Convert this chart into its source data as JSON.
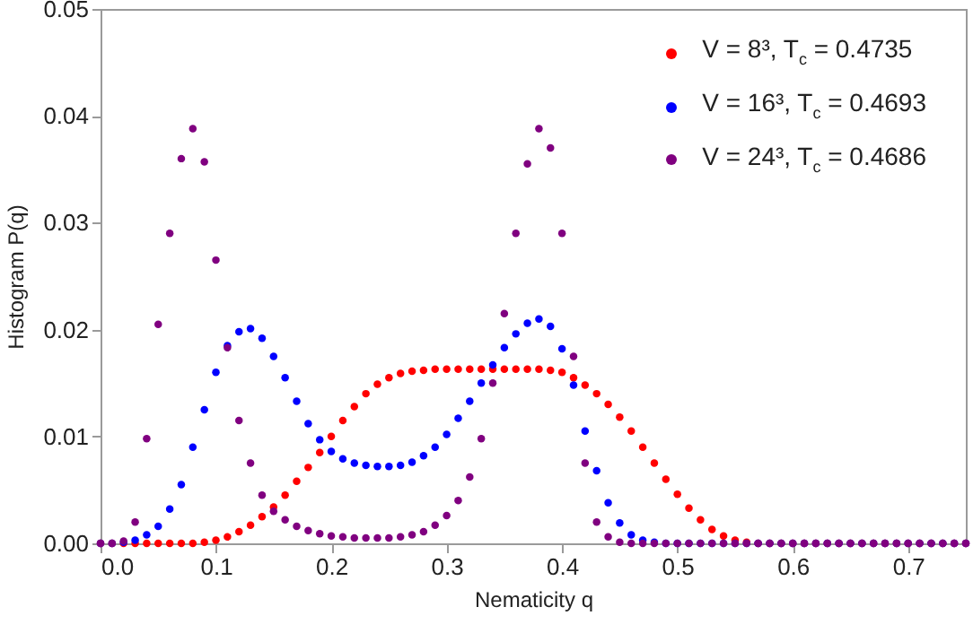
{
  "chart_data": {
    "type": "scatter",
    "xlabel": "Nematicity q",
    "ylabel": "Histogram P(q)",
    "xlim": [
      0,
      0.75
    ],
    "ylim": [
      0,
      0.05
    ],
    "xticks": [
      {
        "value": 0,
        "label": "0.0"
      },
      {
        "value": 0.1,
        "label": "0.1"
      },
      {
        "value": 0.2,
        "label": "0.2"
      },
      {
        "value": 0.3,
        "label": "0.3"
      },
      {
        "value": 0.4,
        "label": "0.4"
      },
      {
        "value": 0.5,
        "label": "0.5"
      },
      {
        "value": 0.6,
        "label": "0.6"
      },
      {
        "value": 0.7,
        "label": "0.7"
      }
    ],
    "yticks": [
      {
        "value": 0,
        "label": "0.00"
      },
      {
        "value": 0.01,
        "label": "0.01"
      },
      {
        "value": 0.02,
        "label": "0.02"
      },
      {
        "value": 0.03,
        "label": "0.03"
      },
      {
        "value": 0.04,
        "label": "0.04"
      },
      {
        "value": 0.05,
        "label": "0.05"
      }
    ],
    "marker": "circle",
    "legend": "top right",
    "grid": false,
    "x": [
      0,
      0.01,
      0.02,
      0.03,
      0.04,
      0.05,
      0.06,
      0.07,
      0.08,
      0.09,
      0.1,
      0.11,
      0.12,
      0.13,
      0.14,
      0.15,
      0.16,
      0.17,
      0.18,
      0.19,
      0.2,
      0.21,
      0.22,
      0.23,
      0.24,
      0.25,
      0.26,
      0.27,
      0.28,
      0.29,
      0.3,
      0.31,
      0.32,
      0.33,
      0.34,
      0.35,
      0.36,
      0.37,
      0.38,
      0.39,
      0.4,
      0.41,
      0.42,
      0.43,
      0.44,
      0.45,
      0.46,
      0.47,
      0.48,
      0.49,
      0.5,
      0.51,
      0.52,
      0.53,
      0.54,
      0.55,
      0.56,
      0.57,
      0.58,
      0.59,
      0.6,
      0.61,
      0.62,
      0.63,
      0.64,
      0.65,
      0.66,
      0.67,
      0.68,
      0.69,
      0.7,
      0.71,
      0.72,
      0.73,
      0.74,
      0.75
    ],
    "series": [
      {
        "name": "V = 8³, T$_{c}$ = 0.4735",
        "color": "#ff0000",
        "values": [
          0,
          0,
          0,
          0,
          0,
          0,
          0,
          0,
          0,
          0.0001,
          0.0003,
          0.0006,
          0.0011,
          0.0017,
          0.0025,
          0.0034,
          0.0045,
          0.0058,
          0.0071,
          0.0085,
          0.01,
          0.0115,
          0.0128,
          0.014,
          0.0149,
          0.0155,
          0.0159,
          0.0161,
          0.0162,
          0.0163,
          0.0163,
          0.0163,
          0.0163,
          0.0163,
          0.0163,
          0.0163,
          0.0163,
          0.0163,
          0.0163,
          0.0162,
          0.016,
          0.0155,
          0.0148,
          0.014,
          0.013,
          0.0118,
          0.0105,
          0.009,
          0.0075,
          0.006,
          0.0046,
          0.0033,
          0.0022,
          0.0013,
          0.0007,
          0.0003,
          0.0001,
          0,
          0,
          0,
          0,
          0,
          0,
          0,
          0,
          0,
          0,
          0,
          0,
          0,
          0,
          0,
          0,
          0,
          0,
          0
        ]
      },
      {
        "name": "V = 16³, T$_{c}$ = 0.4693",
        "color": "#0000ff",
        "values": [
          0,
          0,
          0.0001,
          0.0003,
          0.0008,
          0.0016,
          0.0032,
          0.0055,
          0.009,
          0.0125,
          0.016,
          0.0185,
          0.0198,
          0.0201,
          0.0192,
          0.0175,
          0.0155,
          0.0133,
          0.0112,
          0.0097,
          0.0086,
          0.0079,
          0.0075,
          0.0073,
          0.0072,
          0.0072,
          0.0073,
          0.0076,
          0.0082,
          0.009,
          0.0102,
          0.0117,
          0.0133,
          0.015,
          0.0167,
          0.0183,
          0.0196,
          0.0206,
          0.021,
          0.0203,
          0.0182,
          0.0148,
          0.0105,
          0.0068,
          0.0038,
          0.0019,
          0.0008,
          0.0003,
          0.0001,
          0,
          0,
          0,
          0,
          0,
          0,
          0,
          0,
          0,
          0,
          0,
          0,
          0,
          0,
          0,
          0,
          0,
          0,
          0,
          0,
          0,
          0,
          0,
          0,
          0,
          0,
          0
        ]
      },
      {
        "name": "V = 24³, T$_{c}$ = 0.4686",
        "color": "#800080",
        "values": [
          0,
          0,
          0.0002,
          0.002,
          0.0098,
          0.0205,
          0.029,
          0.036,
          0.0388,
          0.0357,
          0.0265,
          0.0183,
          0.0115,
          0.0075,
          0.0045,
          0.003,
          0.0022,
          0.0016,
          0.0012,
          0.0009,
          0.0007,
          0.0006,
          0.0005,
          0.0005,
          0.0005,
          0.0005,
          0.0006,
          0.0008,
          0.0011,
          0.0017,
          0.0026,
          0.004,
          0.0062,
          0.0098,
          0.015,
          0.0215,
          0.029,
          0.0355,
          0.0388,
          0.037,
          0.029,
          0.0175,
          0.0075,
          0.002,
          0.0006,
          0.0001,
          0,
          0,
          0,
          0,
          0,
          0,
          0,
          0,
          0,
          0,
          0,
          0,
          0,
          0,
          0,
          0,
          0,
          0,
          0,
          0,
          0,
          0,
          0,
          0,
          0,
          0,
          0,
          0,
          0,
          0
        ]
      }
    ]
  }
}
